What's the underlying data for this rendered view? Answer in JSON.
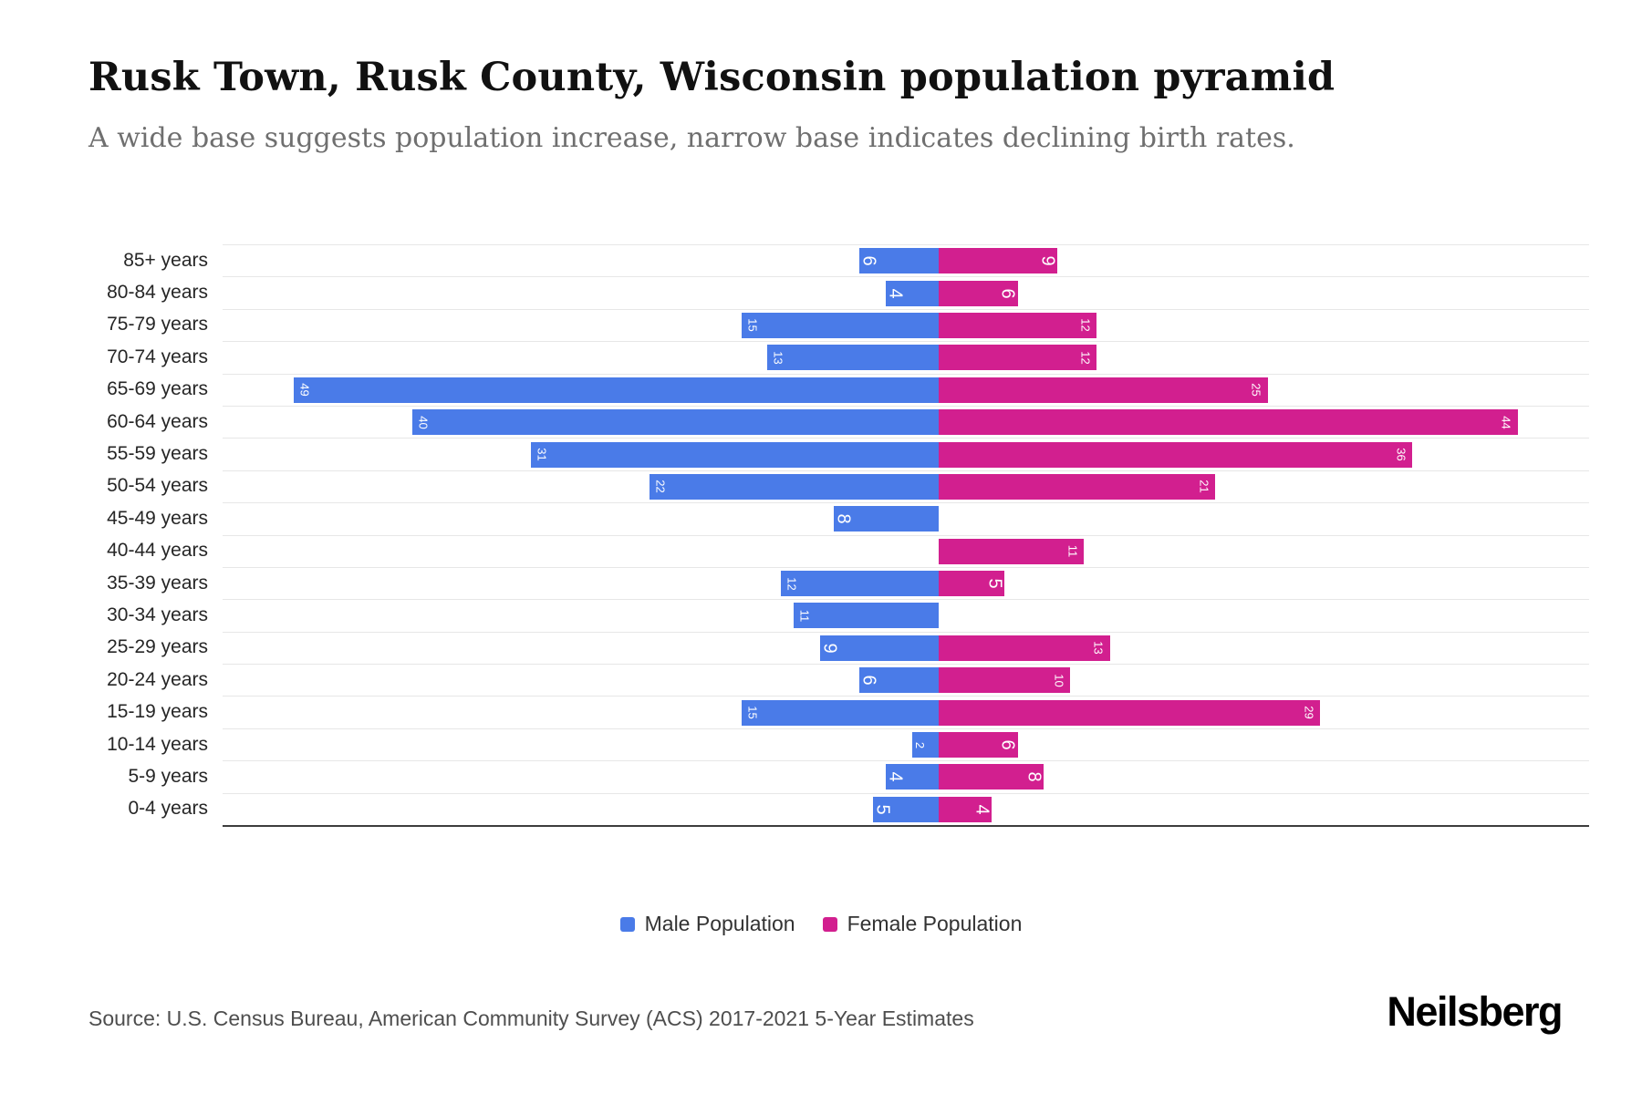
{
  "header": {
    "title": "Rusk Town, Rusk County, Wisconsin population pyramid",
    "subtitle": "A wide base suggests population increase, narrow base indicates declining birth rates."
  },
  "chart_data": {
    "type": "bar",
    "variant": "population-pyramid",
    "categories": [
      "85+ years",
      "80-84 years",
      "75-79 years",
      "70-74 years",
      "65-69 years",
      "60-64 years",
      "55-59 years",
      "50-54 years",
      "45-49 years",
      "40-44 years",
      "35-39 years",
      "30-34 years",
      "25-29 years",
      "20-24 years",
      "15-19 years",
      "10-14 years",
      "5-9 years",
      "0-4 years"
    ],
    "series": [
      {
        "name": "Male Population",
        "side": "left",
        "color": "#4A7BE8",
        "values": [
          6,
          4,
          15,
          13,
          49,
          40,
          31,
          22,
          8,
          0,
          12,
          11,
          9,
          6,
          15,
          2,
          4,
          5
        ]
      },
      {
        "name": "Female Population",
        "side": "right",
        "color": "#D21F8F",
        "values": [
          9,
          6,
          12,
          12,
          25,
          44,
          36,
          21,
          0,
          11,
          5,
          0,
          13,
          10,
          29,
          6,
          8,
          4
        ]
      }
    ],
    "x_range_each_side": [
      0,
      52
    ],
    "grid": true,
    "legend_position": "bottom",
    "value_labels": "rotated-90-inside-bar-ends"
  },
  "legend": {
    "male_label": "Male Population",
    "female_label": "Female Population"
  },
  "footer": {
    "source": "Source: U.S. Census Bureau, American Community Survey (ACS) 2017-2021 5-Year Estimates",
    "logo": "Neilsberg"
  }
}
